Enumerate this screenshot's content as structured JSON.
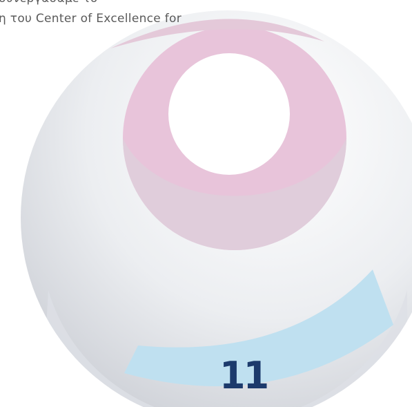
{
  "text": {
    "lines": [
      "συνεργάσαμε το",
      "η του Center of Excellence for"
    ]
  },
  "page_number": "11"
}
